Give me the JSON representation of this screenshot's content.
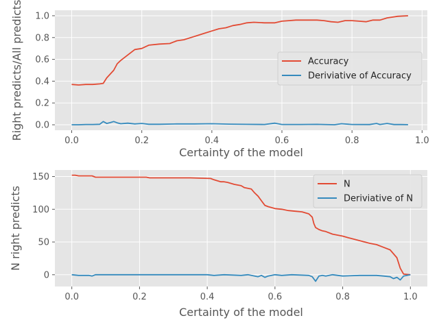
{
  "chart_data": [
    {
      "type": "line",
      "xlabel": "Certainty of the model",
      "ylabel": "Right predicts/All predicts",
      "xlim": [
        -0.048,
        1.015
      ],
      "ylim": [
        -0.05,
        1.05
      ],
      "xticks": [
        0.0,
        0.2,
        0.4,
        0.6,
        0.8,
        1.0
      ],
      "xtick_labels": [
        "0.0",
        "0.2",
        "0.4",
        "0.6",
        "0.8",
        "1.0"
      ],
      "yticks": [
        0.0,
        0.2,
        0.4,
        0.6,
        0.8,
        1.0
      ],
      "ytick_labels": [
        "0.0",
        "0.2",
        "0.4",
        "0.6",
        "0.8",
        "1.0"
      ],
      "grid": true,
      "legend_position": "center-right",
      "series": [
        {
          "name": "Accuracy",
          "color": "#E24A33",
          "x": [
            0.0,
            0.02,
            0.04,
            0.06,
            0.08,
            0.09,
            0.1,
            0.12,
            0.13,
            0.14,
            0.16,
            0.18,
            0.2,
            0.22,
            0.25,
            0.28,
            0.3,
            0.32,
            0.34,
            0.36,
            0.38,
            0.4,
            0.42,
            0.44,
            0.46,
            0.48,
            0.5,
            0.52,
            0.55,
            0.58,
            0.6,
            0.62,
            0.64,
            0.66,
            0.7,
            0.72,
            0.74,
            0.76,
            0.78,
            0.8,
            0.82,
            0.84,
            0.86,
            0.88,
            0.9,
            0.93,
            0.96
          ],
          "y": [
            0.37,
            0.365,
            0.37,
            0.37,
            0.375,
            0.38,
            0.43,
            0.5,
            0.56,
            0.59,
            0.64,
            0.69,
            0.7,
            0.73,
            0.74,
            0.745,
            0.77,
            0.78,
            0.8,
            0.82,
            0.84,
            0.86,
            0.88,
            0.89,
            0.91,
            0.92,
            0.935,
            0.94,
            0.935,
            0.935,
            0.95,
            0.955,
            0.96,
            0.96,
            0.96,
            0.955,
            0.945,
            0.94,
            0.955,
            0.955,
            0.95,
            0.945,
            0.96,
            0.96,
            0.98,
            0.995,
            1.0
          ]
        },
        {
          "name": "Deriviative of Accuracy",
          "color": "#348ABD",
          "x": [
            0.0,
            0.02,
            0.04,
            0.06,
            0.08,
            0.09,
            0.1,
            0.11,
            0.12,
            0.13,
            0.14,
            0.16,
            0.18,
            0.2,
            0.22,
            0.25,
            0.3,
            0.35,
            0.4,
            0.45,
            0.5,
            0.55,
            0.58,
            0.6,
            0.65,
            0.7,
            0.75,
            0.77,
            0.8,
            0.85,
            0.87,
            0.88,
            0.9,
            0.92,
            0.94,
            0.96
          ],
          "y": [
            0.0,
            0.0,
            0.003,
            0.003,
            0.005,
            0.03,
            0.012,
            0.02,
            0.03,
            0.018,
            0.01,
            0.015,
            0.008,
            0.012,
            0.005,
            0.005,
            0.008,
            0.008,
            0.01,
            0.006,
            0.004,
            0.003,
            0.015,
            0.003,
            0.003,
            0.004,
            0.0,
            0.01,
            0.003,
            0.002,
            0.012,
            0.003,
            0.012,
            0.002,
            0.002,
            0.001
          ]
        }
      ]
    },
    {
      "type": "line",
      "xlabel": "Certainty of the model",
      "ylabel": "N right predicts",
      "xlim": [
        -0.05,
        1.05
      ],
      "ylim": [
        -18,
        160
      ],
      "xticks": [
        0.0,
        0.2,
        0.4,
        0.6,
        0.8,
        1.0
      ],
      "xtick_labels": [
        "0.0",
        "0.2",
        "0.4",
        "0.6",
        "0.8",
        "1.0"
      ],
      "yticks": [
        0,
        50,
        100,
        150
      ],
      "ytick_labels": [
        "0",
        "50",
        "100",
        "150"
      ],
      "grid": true,
      "legend_position": "top-right",
      "series": [
        {
          "name": "N",
          "color": "#E24A33",
          "x": [
            0.0,
            0.01,
            0.02,
            0.06,
            0.07,
            0.22,
            0.23,
            0.35,
            0.41,
            0.42,
            0.44,
            0.45,
            0.46,
            0.48,
            0.5,
            0.51,
            0.53,
            0.54,
            0.55,
            0.56,
            0.57,
            0.58,
            0.6,
            0.62,
            0.64,
            0.66,
            0.68,
            0.7,
            0.71,
            0.715,
            0.72,
            0.73,
            0.74,
            0.75,
            0.77,
            0.8,
            0.82,
            0.85,
            0.88,
            0.9,
            0.92,
            0.94,
            0.96,
            0.97,
            0.98,
            1.0
          ],
          "y": [
            152,
            152,
            151,
            151,
            149,
            149,
            148,
            148,
            147,
            145,
            142,
            142,
            141,
            138,
            136,
            133,
            131,
            125,
            120,
            113,
            106,
            104,
            101,
            100,
            98,
            97,
            96,
            93,
            88,
            78,
            72,
            69,
            67,
            66,
            62,
            59,
            56,
            52,
            48,
            46,
            42,
            38,
            26,
            10,
            1,
            0
          ]
        },
        {
          "name": "Deriviative of N",
          "color": "#348ABD",
          "x": [
            0.0,
            0.02,
            0.05,
            0.06,
            0.07,
            0.2,
            0.3,
            0.4,
            0.42,
            0.45,
            0.5,
            0.52,
            0.55,
            0.56,
            0.57,
            0.58,
            0.6,
            0.62,
            0.65,
            0.7,
            0.71,
            0.72,
            0.73,
            0.74,
            0.75,
            0.77,
            0.8,
            0.85,
            0.9,
            0.92,
            0.94,
            0.95,
            0.96,
            0.97,
            0.98,
            0.99,
            1.0
          ],
          "y": [
            0,
            -1,
            -1,
            -2,
            0,
            0,
            0,
            0,
            -1,
            0,
            -1,
            0,
            -3,
            -1,
            -4,
            -2,
            0,
            -1,
            0,
            -1,
            -3,
            -10,
            -2,
            -1,
            -2,
            0,
            -2,
            -1,
            -1,
            -2,
            -3,
            -6,
            -4,
            -8,
            -2,
            -1,
            0
          ]
        }
      ]
    }
  ]
}
